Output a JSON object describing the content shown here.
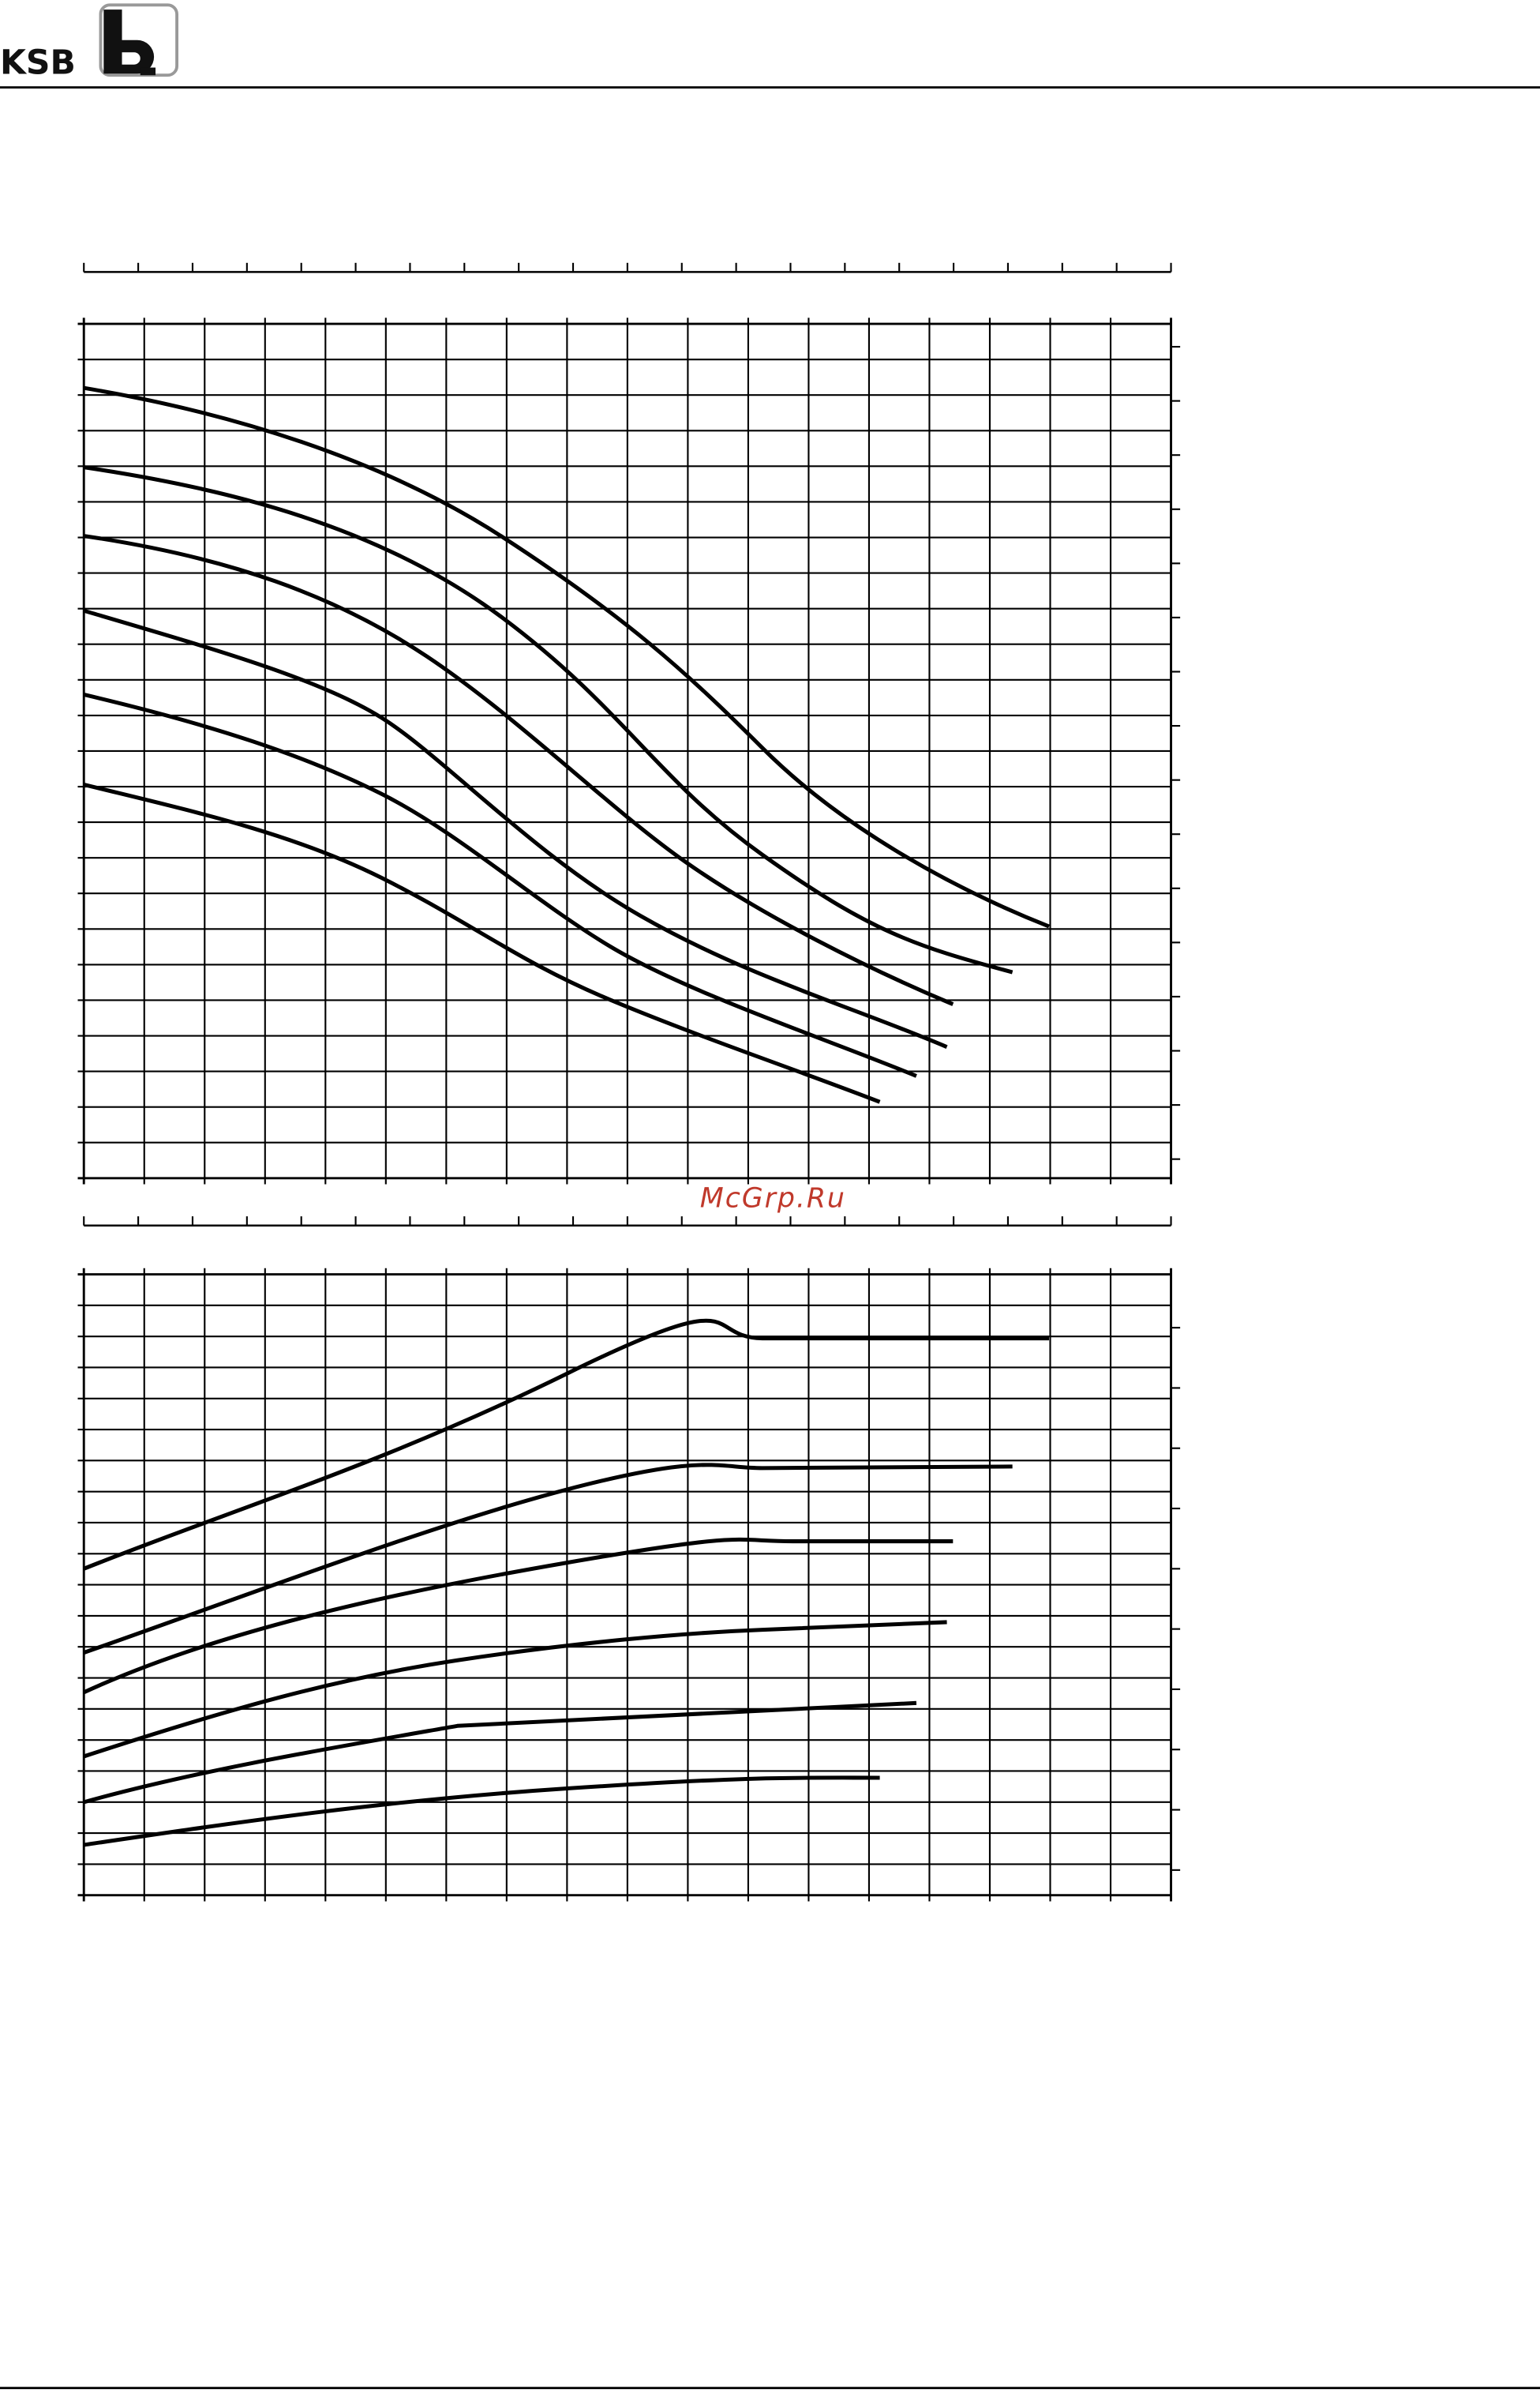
{
  "header": {
    "logo": "KSB"
  },
  "watermark": "McGrp.Ru"
}
